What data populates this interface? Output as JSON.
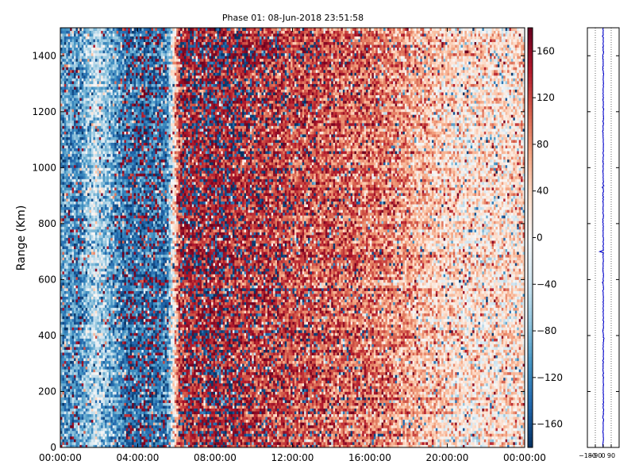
{
  "chart_data": [
    {
      "type": "heatmap",
      "title": "Phase 01: 08-Jun-2018 23:51:58",
      "ylabel": "Range (Km)",
      "xlabel": "",
      "x_ticks": [
        "00:00:00",
        "04:00:00",
        "08:00:00",
        "12:00:00",
        "16:00:00",
        "20:00:00",
        "00:00:00"
      ],
      "x_range_hours": [
        0,
        24
      ],
      "y_ticks": [
        0,
        200,
        400,
        600,
        800,
        1000,
        1200,
        1400
      ],
      "ylim": [
        0,
        1500
      ],
      "colormap": "RdBu_r",
      "colorbar": {
        "ticks": [
          160,
          120,
          80,
          40,
          0,
          -40,
          -80,
          -120,
          -160
        ],
        "tick_labels": [
          "160",
          "120",
          "80",
          "40",
          "0",
          "−40",
          "−80",
          "−120",
          "−160"
        ],
        "vmin": -180,
        "vmax": 180
      },
      "mean_phase_by_hour": [
        {
          "hour": 0,
          "value": -100
        },
        {
          "hour": 1,
          "value": -120
        },
        {
          "hour": 1.8,
          "value": -40
        },
        {
          "hour": 2.6,
          "value": -90
        },
        {
          "hour": 3.4,
          "value": -140
        },
        {
          "hour": 4.5,
          "value": -150
        },
        {
          "hour": 5.5,
          "value": -130
        },
        {
          "hour": 6.2,
          "value": 150
        },
        {
          "hour": 8,
          "value": 160
        },
        {
          "hour": 11,
          "value": 130
        },
        {
          "hour": 14,
          "value": 110
        },
        {
          "hour": 17,
          "value": 90
        },
        {
          "hour": 19,
          "value": 50
        },
        {
          "hour": 21,
          "value": 20
        },
        {
          "hour": 24,
          "value": 30
        }
      ],
      "noise_amplitude": 55,
      "outlier_fraction": 0.1
    },
    {
      "type": "line",
      "title": "",
      "x_tick_labels": [
        "−180",
        "−90",
        "0",
        "90"
      ],
      "x_ticks": [
        -180,
        -90,
        0,
        90
      ],
      "xlim": [
        -180,
        180
      ],
      "ylim": [
        0,
        1500
      ],
      "y_ticks": [
        0,
        200,
        400,
        600,
        800,
        1000,
        1200,
        1400
      ],
      "grid": "vertical dotted",
      "line_color": "#0000cc",
      "center_value": 0,
      "noise_amplitude": 8,
      "spikes": [
        {
          "range_km": 700,
          "value": -40
        },
        {
          "range_km": 590,
          "value": -10
        },
        {
          "range_km": 1470,
          "value": -10
        },
        {
          "range_km": 1130,
          "value": -8
        },
        {
          "range_km": 930,
          "value": -12
        },
        {
          "range_km": 390,
          "value": 9
        }
      ]
    }
  ]
}
